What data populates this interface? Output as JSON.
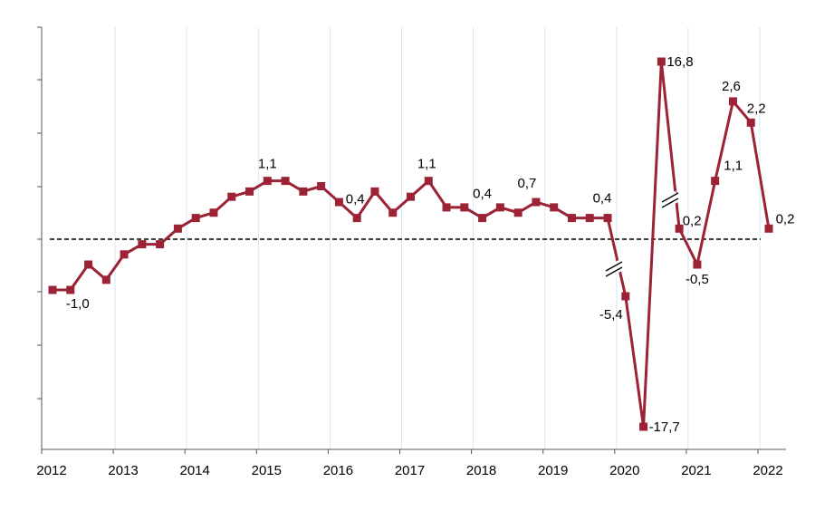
{
  "chart_data": {
    "type": "line",
    "title": "",
    "xlabel": "",
    "ylabel": "",
    "x_tick_labels": [
      "2012",
      "2013",
      "2014",
      "2015",
      "2016",
      "2017",
      "2018",
      "2019",
      "2020",
      "2021",
      "2022"
    ],
    "x": [
      "2012Q1",
      "2012Q2",
      "2012Q3",
      "2012Q4",
      "2013Q1",
      "2013Q2",
      "2013Q3",
      "2013Q4",
      "2014Q1",
      "2014Q2",
      "2014Q3",
      "2014Q4",
      "2015Q1",
      "2015Q2",
      "2015Q3",
      "2015Q4",
      "2016Q1",
      "2016Q2",
      "2016Q3",
      "2016Q4",
      "2017Q1",
      "2017Q2",
      "2017Q3",
      "2017Q4",
      "2018Q1",
      "2018Q2",
      "2018Q3",
      "2018Q4",
      "2019Q1",
      "2019Q2",
      "2019Q3",
      "2019Q4",
      "2020Q1",
      "2020Q2",
      "2020Q3",
      "2020Q4",
      "2021Q1",
      "2021Q2",
      "2021Q3",
      "2021Q4",
      "2022Q1"
    ],
    "series": [
      {
        "values": [
          -1.0,
          -1.0,
          -0.5,
          -0.8,
          -0.3,
          -0.1,
          -0.1,
          0.2,
          0.4,
          0.5,
          0.8,
          0.9,
          1.1,
          1.1,
          0.9,
          1.0,
          0.7,
          0.4,
          0.9,
          0.5,
          0.8,
          1.1,
          0.6,
          0.6,
          0.4,
          0.6,
          0.5,
          0.7,
          0.6,
          0.4,
          0.4,
          0.4,
          -5.4,
          -17.7,
          16.8,
          0.2,
          -0.5,
          1.1,
          2.6,
          2.2,
          0.2
        ]
      }
    ],
    "data_labels": [
      {
        "x": "2012Q2",
        "text": "-1,0"
      },
      {
        "x": "2015Q1",
        "text": "1,1"
      },
      {
        "x": "2016Q2",
        "text": "0,4"
      },
      {
        "x": "2017Q2",
        "text": "1,1"
      },
      {
        "x": "2018Q1",
        "text": "0,4"
      },
      {
        "x": "2018Q4",
        "text": "0,7"
      },
      {
        "x": "2019Q4",
        "text": "0,4"
      },
      {
        "x": "2020Q1",
        "text": "-5,4"
      },
      {
        "x": "2020Q2",
        "text": "-17,7"
      },
      {
        "x": "2020Q3",
        "text": "16,8"
      },
      {
        "x": "2020Q4",
        "text": "0,2"
      },
      {
        "x": "2021Q1",
        "text": "-0,5"
      },
      {
        "x": "2021Q2",
        "text": "1,1"
      },
      {
        "x": "2021Q3",
        "text": "2,6"
      },
      {
        "x": "2021Q4",
        "text": "2,2"
      },
      {
        "x": "2022Q1",
        "text": "0,2"
      }
    ],
    "axis_breaks": true,
    "reference_line": 0,
    "grid": true,
    "legend": "none",
    "colors": {
      "series": "#9b2335",
      "grid": "#d6e9f7",
      "axis": "#555555",
      "zero_line": "#000000"
    }
  }
}
